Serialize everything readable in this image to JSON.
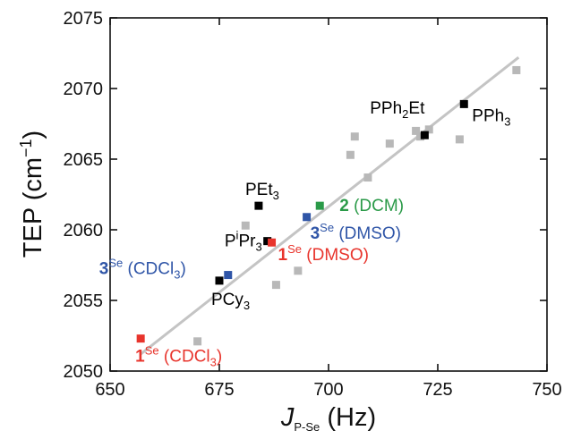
{
  "chart_data": {
    "type": "scatter",
    "xlabel": {
      "main": "J",
      "sub": "P-Se",
      "unit": " (Hz)"
    },
    "ylabel": {
      "main": "TEP (cm",
      "sup": "−1",
      "end": ")"
    },
    "xlim": [
      650,
      750
    ],
    "ylim": [
      2050,
      2075
    ],
    "x_ticks": [
      650,
      675,
      700,
      725,
      750
    ],
    "y_ticks": [
      2050,
      2055,
      2060,
      2065,
      2070,
      2075
    ],
    "grid": false,
    "colors": {
      "reference": "#b8b8b8",
      "phosphine": "#000000",
      "compound1": "#e8342c",
      "compound2": "#2a9a48",
      "compound3": "#2f55a7",
      "fit_line": "#c4c4c4"
    },
    "fit_line": {
      "x": [
        657,
        743.5
      ],
      "y": [
        2051.2,
        2072.2
      ]
    },
    "reference_points": [
      {
        "x": 670,
        "y": 2052.1
      },
      {
        "x": 681,
        "y": 2060.3
      },
      {
        "x": 688,
        "y": 2056.1
      },
      {
        "x": 693,
        "y": 2057.1
      },
      {
        "x": 705,
        "y": 2065.3
      },
      {
        "x": 706,
        "y": 2066.6
      },
      {
        "x": 709,
        "y": 2063.7
      },
      {
        "x": 714,
        "y": 2066.1
      },
      {
        "x": 720,
        "y": 2067.0
      },
      {
        "x": 721,
        "y": 2066.6
      },
      {
        "x": 723,
        "y": 2067.1
      },
      {
        "x": 730,
        "y": 2066.4
      },
      {
        "x": 743,
        "y": 2071.3
      }
    ],
    "labeled_points": [
      {
        "id": "pph3",
        "x": 731,
        "y": 2068.9,
        "color_key": "phosphine",
        "parts": [
          {
            "t": "PPh"
          },
          {
            "t": "3",
            "kind": "sub"
          }
        ]
      },
      {
        "id": "pph2et",
        "x": 722,
        "y": 2066.7,
        "color_key": "phosphine",
        "parts": [
          {
            "t": "PPh"
          },
          {
            "t": "2",
            "kind": "sub"
          },
          {
            "t": "Et"
          }
        ]
      },
      {
        "id": "pet3",
        "x": 684,
        "y": 2061.7,
        "color_key": "phosphine",
        "parts": [
          {
            "t": "PEt"
          },
          {
            "t": "3",
            "kind": "sub"
          }
        ]
      },
      {
        "id": "pipr3",
        "x": 686,
        "y": 2059.2,
        "color_key": "phosphine",
        "parts": [
          {
            "t": "P"
          },
          {
            "t": "i",
            "kind": "sup"
          },
          {
            "t": "Pr"
          },
          {
            "t": "3",
            "kind": "sub"
          }
        ]
      },
      {
        "id": "pcy3",
        "x": 675,
        "y": 2056.4,
        "color_key": "phosphine",
        "parts": [
          {
            "t": "PCy"
          },
          {
            "t": "3",
            "kind": "sub"
          }
        ]
      },
      {
        "id": "c1-dmso",
        "x": 687,
        "y": 2059.1,
        "color_key": "compound1",
        "parts": [
          {
            "t": "1",
            "kind": "bold"
          },
          {
            "t": "Se",
            "kind": "sup"
          },
          {
            "t": " (DMSO)"
          }
        ]
      },
      {
        "id": "c1-cdcl3",
        "x": 657,
        "y": 2052.3,
        "color_key": "compound1",
        "parts": [
          {
            "t": "1",
            "kind": "bold"
          },
          {
            "t": "Se",
            "kind": "sup"
          },
          {
            "t": " (CDCl"
          },
          {
            "t": "3",
            "kind": "sub"
          },
          {
            "t": ")"
          }
        ]
      },
      {
        "id": "c2-dcm",
        "x": 698,
        "y": 2061.7,
        "color_key": "compound2",
        "parts": [
          {
            "t": "2",
            "kind": "bold"
          },
          {
            "t": " (DCM)"
          }
        ]
      },
      {
        "id": "c3-dmso",
        "x": 695,
        "y": 2060.9,
        "color_key": "compound3",
        "parts": [
          {
            "t": "3",
            "kind": "bold"
          },
          {
            "t": "Se",
            "kind": "sup"
          },
          {
            "t": " (DMSO)"
          }
        ]
      },
      {
        "id": "c3-cdcl3",
        "x": 677,
        "y": 2056.8,
        "color_key": "compound3",
        "parts": [
          {
            "t": "3",
            "kind": "bold"
          },
          {
            "t": "Se",
            "kind": "sup"
          },
          {
            "t": " (CDCl"
          },
          {
            "t": "3",
            "kind": "sub"
          },
          {
            "t": ")"
          }
        ]
      }
    ]
  }
}
